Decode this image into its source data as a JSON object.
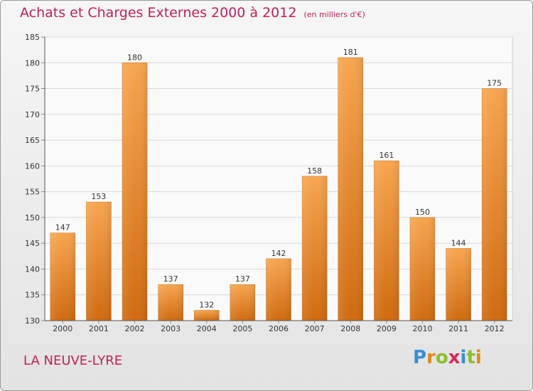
{
  "header": {
    "title": "Achats et Charges Externes 2000 à 2012",
    "subtitle": "(en milliers d'€)"
  },
  "footer": {
    "commune": "LA NEUVE-LYRE",
    "logo_letters": [
      "P",
      "r",
      "o",
      "x",
      "i",
      "t",
      "i"
    ]
  },
  "colors": {
    "title": "#c0205a",
    "bar_top": "#f7a54f",
    "bar_bottom": "#d06a10",
    "grid": "#d8d8d8",
    "axis": "#555555"
  },
  "chart_data": {
    "type": "bar",
    "title": "Achats et Charges Externes 2000 à 2012",
    "subtitle": "(en milliers d'€)",
    "categories": [
      "2000",
      "2001",
      "2002",
      "2003",
      "2004",
      "2005",
      "2006",
      "2007",
      "2008",
      "2009",
      "2010",
      "2011",
      "2012"
    ],
    "values": [
      147,
      153,
      180,
      137,
      132,
      137,
      142,
      158,
      181,
      161,
      150,
      144,
      175
    ],
    "ylim": [
      130,
      185
    ],
    "yticks": [
      130,
      135,
      140,
      145,
      150,
      155,
      160,
      165,
      170,
      175,
      180,
      185
    ],
    "grid": true,
    "legend": "none",
    "data_labels": true
  }
}
